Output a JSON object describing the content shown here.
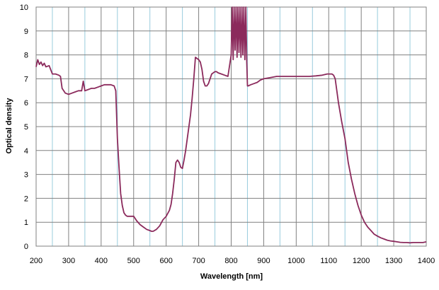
{
  "chart_data": {
    "type": "line",
    "title": "",
    "xlabel": "Wavelength [nm]",
    "ylabel": "Optical density",
    "xlim": [
      200,
      1400
    ],
    "ylim": [
      0,
      10
    ],
    "x_major_ticks": [
      200,
      300,
      400,
      500,
      600,
      700,
      800,
      900,
      1000,
      1100,
      1200,
      1300,
      1400
    ],
    "x_minor_ticks": [
      250,
      350,
      450,
      550,
      650,
      750,
      850,
      950,
      1050,
      1150,
      1250,
      1350
    ],
    "y_ticks": [
      0,
      1,
      2,
      3,
      4,
      5,
      6,
      7,
      8,
      9,
      10
    ],
    "grid": true,
    "legend": "none",
    "colors": {
      "line": "#8b2a5c",
      "major_grid": "#808080",
      "minor_grid": "#99ccdd"
    },
    "series": [
      {
        "x": [
          200,
          205,
          210,
          215,
          220,
          225,
          230,
          240,
          250,
          260,
          270,
          275,
          280,
          290,
          300,
          310,
          320,
          330,
          340,
          345,
          350,
          360,
          370,
          380,
          390,
          400,
          410,
          420,
          430,
          440,
          445,
          450,
          455,
          460,
          465,
          470,
          475,
          480,
          490,
          500,
          505,
          510,
          520,
          530,
          540,
          550,
          555,
          560,
          570,
          580,
          590,
          600,
          610,
          615,
          620,
          625,
          630,
          635,
          640,
          645,
          650,
          655,
          660,
          665,
          670,
          675,
          680,
          685,
          690,
          700,
          705,
          710,
          715,
          720,
          725,
          730,
          740,
          750,
          755,
          760,
          770,
          780,
          790,
          800,
          803,
          806,
          809,
          812,
          815,
          818,
          821,
          824,
          827,
          830,
          833,
          836,
          839,
          842,
          845,
          848,
          850,
          852,
          860,
          870,
          880,
          890,
          900,
          920,
          940,
          960,
          980,
          1000,
          1020,
          1040,
          1060,
          1080,
          1095,
          1105,
          1110,
          1115,
          1120,
          1125,
          1130,
          1140,
          1150,
          1160,
          1170,
          1180,
          1190,
          1200,
          1210,
          1220,
          1230,
          1240,
          1250,
          1260,
          1270,
          1280,
          1290,
          1300,
          1310,
          1320,
          1330,
          1340,
          1350,
          1360,
          1370,
          1380,
          1390,
          1400
        ],
        "values": [
          7.5,
          7.8,
          7.6,
          7.7,
          7.55,
          7.65,
          7.5,
          7.55,
          7.2,
          7.2,
          7.15,
          7.1,
          6.6,
          6.4,
          6.35,
          6.4,
          6.45,
          6.5,
          6.5,
          6.9,
          6.5,
          6.55,
          6.6,
          6.6,
          6.65,
          6.7,
          6.75,
          6.75,
          6.75,
          6.7,
          6.5,
          4.5,
          3.3,
          2.2,
          1.7,
          1.4,
          1.3,
          1.25,
          1.25,
          1.25,
          1.15,
          1.05,
          0.9,
          0.8,
          0.7,
          0.65,
          0.62,
          0.62,
          0.7,
          0.85,
          1.1,
          1.25,
          1.5,
          1.75,
          2.2,
          2.8,
          3.5,
          3.6,
          3.5,
          3.3,
          3.25,
          3.6,
          4.0,
          4.5,
          5.0,
          5.5,
          6.2,
          7.0,
          7.9,
          7.8,
          7.7,
          7.4,
          6.9,
          6.7,
          6.7,
          6.8,
          7.2,
          7.3,
          7.3,
          7.25,
          7.2,
          7.15,
          7.1,
          8.0,
          10.0,
          7.8,
          10.0,
          8.2,
          10.0,
          7.9,
          10.0,
          8.1,
          10.0,
          7.9,
          10.0,
          8.0,
          10.0,
          7.8,
          10.0,
          7.7,
          6.7,
          6.7,
          6.75,
          6.8,
          6.85,
          6.95,
          7.0,
          7.05,
          7.1,
          7.1,
          7.1,
          7.1,
          7.1,
          7.1,
          7.12,
          7.15,
          7.2,
          7.2,
          7.2,
          7.15,
          7.0,
          6.5,
          6.0,
          5.2,
          4.5,
          3.5,
          2.8,
          2.2,
          1.7,
          1.3,
          1.0,
          0.8,
          0.65,
          0.5,
          0.42,
          0.35,
          0.3,
          0.25,
          0.22,
          0.2,
          0.18,
          0.16,
          0.15,
          0.15,
          0.14,
          0.15,
          0.15,
          0.15,
          0.15,
          0.18
        ]
      }
    ]
  }
}
